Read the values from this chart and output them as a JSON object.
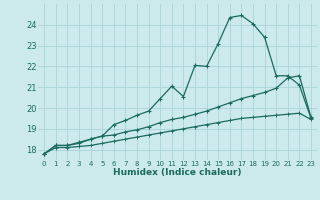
{
  "xlabel": "Humidex (Indice chaleur)",
  "bg_color": "#cce9ec",
  "grid_color": "#aad4d8",
  "line_color": "#1a6b5e",
  "xlim": [
    -0.5,
    23.5
  ],
  "ylim": [
    17.5,
    25.0
  ],
  "yticks": [
    18,
    19,
    20,
    21,
    22,
    23,
    24
  ],
  "xticks": [
    0,
    1,
    2,
    3,
    4,
    5,
    6,
    7,
    8,
    9,
    10,
    11,
    12,
    13,
    14,
    15,
    16,
    17,
    18,
    19,
    20,
    21,
    22,
    23
  ],
  "curve1_x": [
    0,
    1,
    2,
    3,
    4,
    5,
    6,
    7,
    8,
    9,
    10,
    11,
    12,
    13,
    14,
    15,
    16,
    17,
    18,
    19,
    20,
    21,
    22,
    23
  ],
  "curve1_y": [
    17.8,
    18.2,
    18.2,
    18.35,
    18.5,
    18.65,
    19.2,
    19.4,
    19.65,
    19.85,
    20.45,
    21.05,
    20.55,
    22.05,
    22.0,
    23.1,
    24.35,
    24.45,
    24.05,
    23.4,
    21.55,
    21.55,
    21.1,
    19.5
  ],
  "curve2_x": [
    0,
    1,
    2,
    3,
    4,
    5,
    6,
    7,
    8,
    9,
    10,
    11,
    12,
    13,
    14,
    15,
    16,
    17,
    18,
    19,
    20,
    21,
    22,
    23
  ],
  "curve2_y": [
    17.8,
    18.2,
    18.2,
    18.3,
    18.5,
    18.65,
    18.7,
    18.85,
    18.95,
    19.1,
    19.3,
    19.45,
    19.55,
    19.7,
    19.85,
    20.05,
    20.25,
    20.45,
    20.6,
    20.75,
    20.95,
    21.45,
    21.55,
    19.55
  ],
  "curve3_x": [
    0,
    1,
    2,
    3,
    4,
    5,
    6,
    7,
    8,
    9,
    10,
    11,
    12,
    13,
    14,
    15,
    16,
    17,
    18,
    19,
    20,
    21,
    22,
    23
  ],
  "curve3_y": [
    17.8,
    18.1,
    18.1,
    18.15,
    18.2,
    18.3,
    18.4,
    18.5,
    18.6,
    18.7,
    18.8,
    18.9,
    19.0,
    19.1,
    19.2,
    19.3,
    19.4,
    19.5,
    19.55,
    19.6,
    19.65,
    19.7,
    19.75,
    19.45
  ]
}
